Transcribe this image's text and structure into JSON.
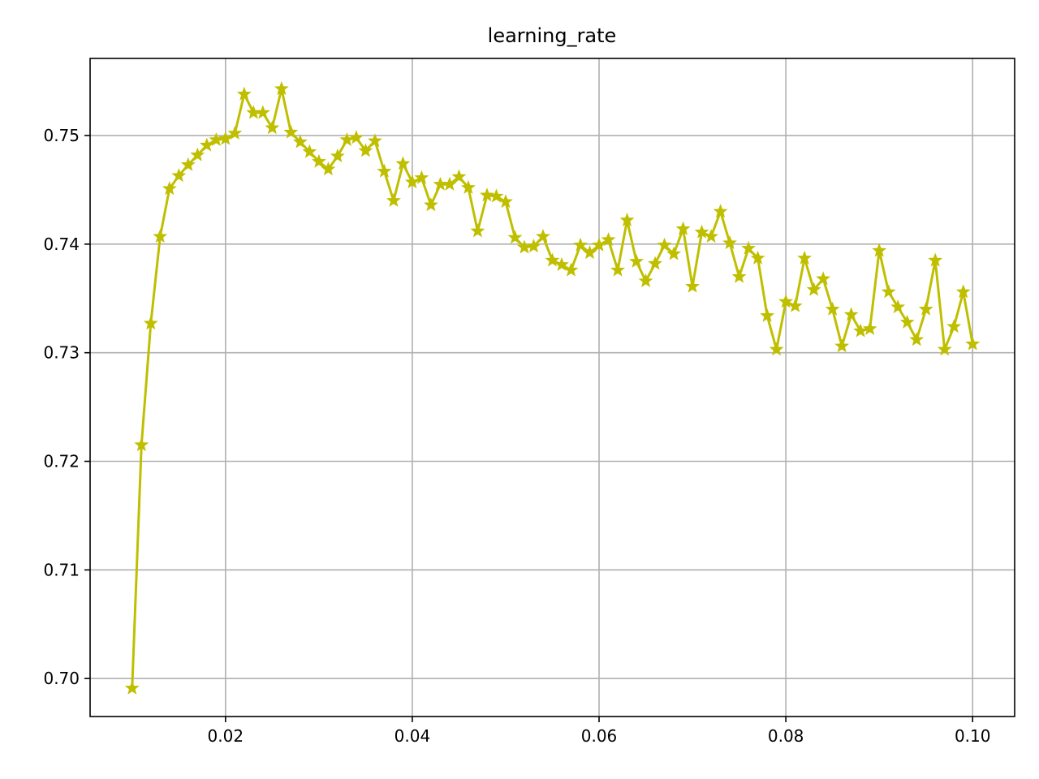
{
  "chart_data": {
    "type": "line",
    "title": "learning_rate",
    "xlabel": "",
    "ylabel": "",
    "xlim": [
      0.0055,
      0.1045
    ],
    "ylim": [
      0.6965,
      0.7571
    ],
    "xticks": [
      0.02,
      0.04,
      0.06,
      0.08,
      0.1
    ],
    "xtick_labels": [
      "0.02",
      "0.04",
      "0.06",
      "0.08",
      "0.10"
    ],
    "yticks": [
      0.7,
      0.71,
      0.72,
      0.73,
      0.74,
      0.75
    ],
    "ytick_labels": [
      "0.70",
      "0.71",
      "0.72",
      "0.73",
      "0.74",
      "0.75"
    ],
    "grid": true,
    "legend": "none",
    "series": [
      {
        "color": "#bfbf00",
        "marker": "star",
        "x": [
          0.01,
          0.011,
          0.012,
          0.013,
          0.014,
          0.015,
          0.016,
          0.017,
          0.018,
          0.019,
          0.02,
          0.021,
          0.022,
          0.023,
          0.024,
          0.025,
          0.026,
          0.027,
          0.028,
          0.029,
          0.03,
          0.031,
          0.032,
          0.033,
          0.034,
          0.035,
          0.036,
          0.037,
          0.038,
          0.039,
          0.04,
          0.041,
          0.042,
          0.043,
          0.044,
          0.045,
          0.046,
          0.047,
          0.048,
          0.049,
          0.05,
          0.051,
          0.052,
          0.053,
          0.054,
          0.055,
          0.056,
          0.057,
          0.058,
          0.059,
          0.06,
          0.061,
          0.062,
          0.063,
          0.064,
          0.065,
          0.066,
          0.067,
          0.068,
          0.069,
          0.07,
          0.071,
          0.072,
          0.073,
          0.074,
          0.075,
          0.076,
          0.077,
          0.078,
          0.079,
          0.08,
          0.081,
          0.082,
          0.083,
          0.084,
          0.085,
          0.086,
          0.087,
          0.088,
          0.089,
          0.09,
          0.091,
          0.092,
          0.093,
          0.094,
          0.095,
          0.096,
          0.097,
          0.098,
          0.099,
          0.1
        ],
        "y": [
          0.6991,
          0.7215,
          0.7327,
          0.7407,
          0.7451,
          0.7463,
          0.7473,
          0.7482,
          0.7491,
          0.7496,
          0.7497,
          0.7502,
          0.7538,
          0.7521,
          0.7521,
          0.7507,
          0.7543,
          0.7503,
          0.7494,
          0.7485,
          0.7476,
          0.7469,
          0.7481,
          0.7496,
          0.7498,
          0.7486,
          0.7495,
          0.7467,
          0.744,
          0.7474,
          0.7457,
          0.7461,
          0.7436,
          0.7455,
          0.7455,
          0.7462,
          0.7452,
          0.7412,
          0.7445,
          0.7444,
          0.7439,
          0.7406,
          0.7397,
          0.7398,
          0.7407,
          0.7385,
          0.7381,
          0.7376,
          0.7399,
          0.7392,
          0.7399,
          0.7404,
          0.7376,
          0.7422,
          0.7384,
          0.7366,
          0.7382,
          0.7399,
          0.7391,
          0.7414,
          0.7361,
          0.7411,
          0.7407,
          0.743,
          0.7401,
          0.737,
          0.7396,
          0.7387,
          0.7334,
          0.7303,
          0.7347,
          0.7343,
          0.7387,
          0.7358,
          0.7368,
          0.734,
          0.7306,
          0.7335,
          0.732,
          0.7322,
          0.7394,
          0.7356,
          0.7342,
          0.7328,
          0.7312,
          0.734,
          0.7385,
          0.7303,
          0.7324,
          0.7356,
          0.7308
        ]
      }
    ]
  }
}
